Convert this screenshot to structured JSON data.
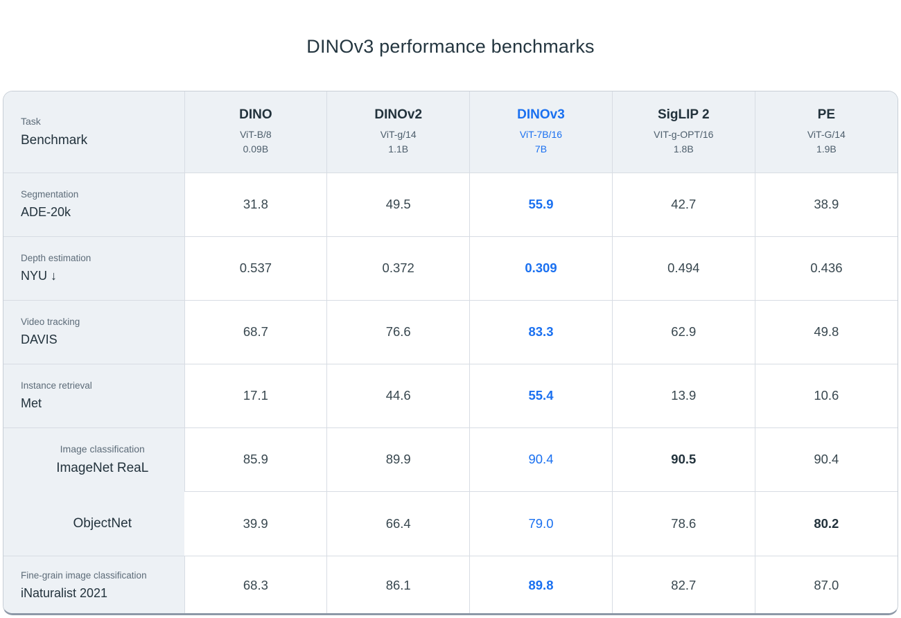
{
  "title": "DINOv3 performance benchmarks",
  "colors": {
    "accent_blue": "#1a70f0",
    "header_bg": "#edf1f5",
    "grid_line": "#d7dce3",
    "outer_border": "#c7ced6",
    "bottom_border": "#8d98a7",
    "text_dark": "#22323c",
    "text_muted": "#5c6b78"
  },
  "table": {
    "corner": {
      "task_label": "Task",
      "benchmark_label": "Benchmark"
    },
    "columns": [
      {
        "name": "DINO",
        "arch": "ViT-B/8",
        "params": "0.09B",
        "highlight": false
      },
      {
        "name": "DINOv2",
        "arch": "ViT-g/14",
        "params": "1.1B",
        "highlight": false
      },
      {
        "name": "DINOv3",
        "arch": "ViT-7B/16",
        "params": "7B",
        "highlight": true
      },
      {
        "name": "SigLIP 2",
        "arch": "VIT-g-OPT/16",
        "params": "1.8B",
        "highlight": false
      },
      {
        "name": "PE",
        "arch": "ViT-G/14",
        "params": "1.9B",
        "highlight": false
      }
    ],
    "rows": [
      {
        "task": "Segmentation",
        "benchmark": "ADE-20k",
        "values": [
          {
            "v": "31.8",
            "style": "normal"
          },
          {
            "v": "49.5",
            "style": "normal"
          },
          {
            "v": "55.9",
            "style": "accent-bold"
          },
          {
            "v": "42.7",
            "style": "normal"
          },
          {
            "v": "38.9",
            "style": "normal"
          }
        ]
      },
      {
        "task": "Depth estimation",
        "benchmark": "NYU ↓",
        "values": [
          {
            "v": "0.537",
            "style": "normal"
          },
          {
            "v": "0.372",
            "style": "normal"
          },
          {
            "v": "0.309",
            "style": "accent-bold"
          },
          {
            "v": "0.494",
            "style": "normal"
          },
          {
            "v": "0.436",
            "style": "normal"
          }
        ]
      },
      {
        "task": "Video tracking",
        "benchmark": "DAVIS",
        "values": [
          {
            "v": "68.7",
            "style": "normal"
          },
          {
            "v": "76.6",
            "style": "normal"
          },
          {
            "v": "83.3",
            "style": "accent-bold"
          },
          {
            "v": "62.9",
            "style": "normal"
          },
          {
            "v": "49.8",
            "style": "normal"
          }
        ]
      },
      {
        "task": "Instance retrieval",
        "benchmark": "Met",
        "values": [
          {
            "v": "17.1",
            "style": "normal"
          },
          {
            "v": "44.6",
            "style": "normal"
          },
          {
            "v": "55.4",
            "style": "accent-bold"
          },
          {
            "v": "13.9",
            "style": "normal"
          },
          {
            "v": "10.6",
            "style": "normal"
          }
        ]
      },
      {
        "task": "Image classification",
        "benchmark": "ImageNet ReaL",
        "values": [
          {
            "v": "85.9",
            "style": "normal"
          },
          {
            "v": "89.9",
            "style": "normal"
          },
          {
            "v": "90.4",
            "style": "accent"
          },
          {
            "v": "90.5",
            "style": "bold"
          },
          {
            "v": "90.4",
            "style": "normal"
          }
        ]
      },
      {
        "task": "",
        "benchmark": "ObjectNet",
        "values": [
          {
            "v": "39.9",
            "style": "normal"
          },
          {
            "v": "66.4",
            "style": "normal"
          },
          {
            "v": "79.0",
            "style": "accent"
          },
          {
            "v": "78.6",
            "style": "normal"
          },
          {
            "v": "80.2",
            "style": "bold"
          }
        ]
      },
      {
        "task": "Fine-grain image classification",
        "benchmark": "iNaturalist 2021",
        "values": [
          {
            "v": "68.3",
            "style": "normal"
          },
          {
            "v": "86.1",
            "style": "normal"
          },
          {
            "v": "89.8",
            "style": "accent-bold"
          },
          {
            "v": "82.7",
            "style": "normal"
          },
          {
            "v": "87.0",
            "style": "normal"
          }
        ]
      }
    ]
  }
}
